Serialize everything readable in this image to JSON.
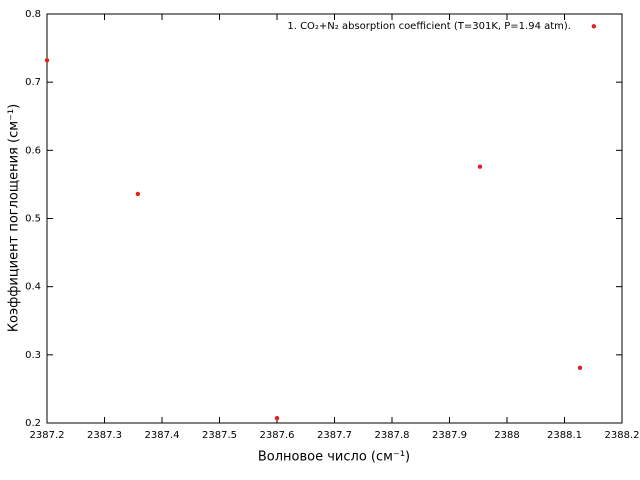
{
  "chart_data": {
    "type": "scatter",
    "xlabel": "Волновое число (см⁻¹)",
    "ylabel": "Коэффициент поглощения (см⁻¹)",
    "series": [
      {
        "name": "1. CO₂+N₂ absorption coefficient (T=301K, P=1.94 atm).",
        "color": "#e3211c",
        "x": [
          2387.2,
          2387.358,
          2387.6,
          2387.953,
          2388.127,
          2388.151
        ],
        "values": [
          0.732,
          0.536,
          0.207,
          0.576,
          0.281,
          0.782
        ]
      }
    ],
    "xlim": [
      2387.2,
      2388.2
    ],
    "xticks": [
      2387.2,
      2387.3,
      2387.4,
      2387.5,
      2387.6,
      2387.7,
      2387.8,
      2387.9,
      2388,
      2388.1,
      2388.2
    ],
    "ylim": [
      0.2,
      0.8
    ],
    "yticks": [
      0.2,
      0.3,
      0.4,
      0.5,
      0.6,
      0.7,
      0.8
    ],
    "grid": false,
    "legend": "top-right"
  }
}
